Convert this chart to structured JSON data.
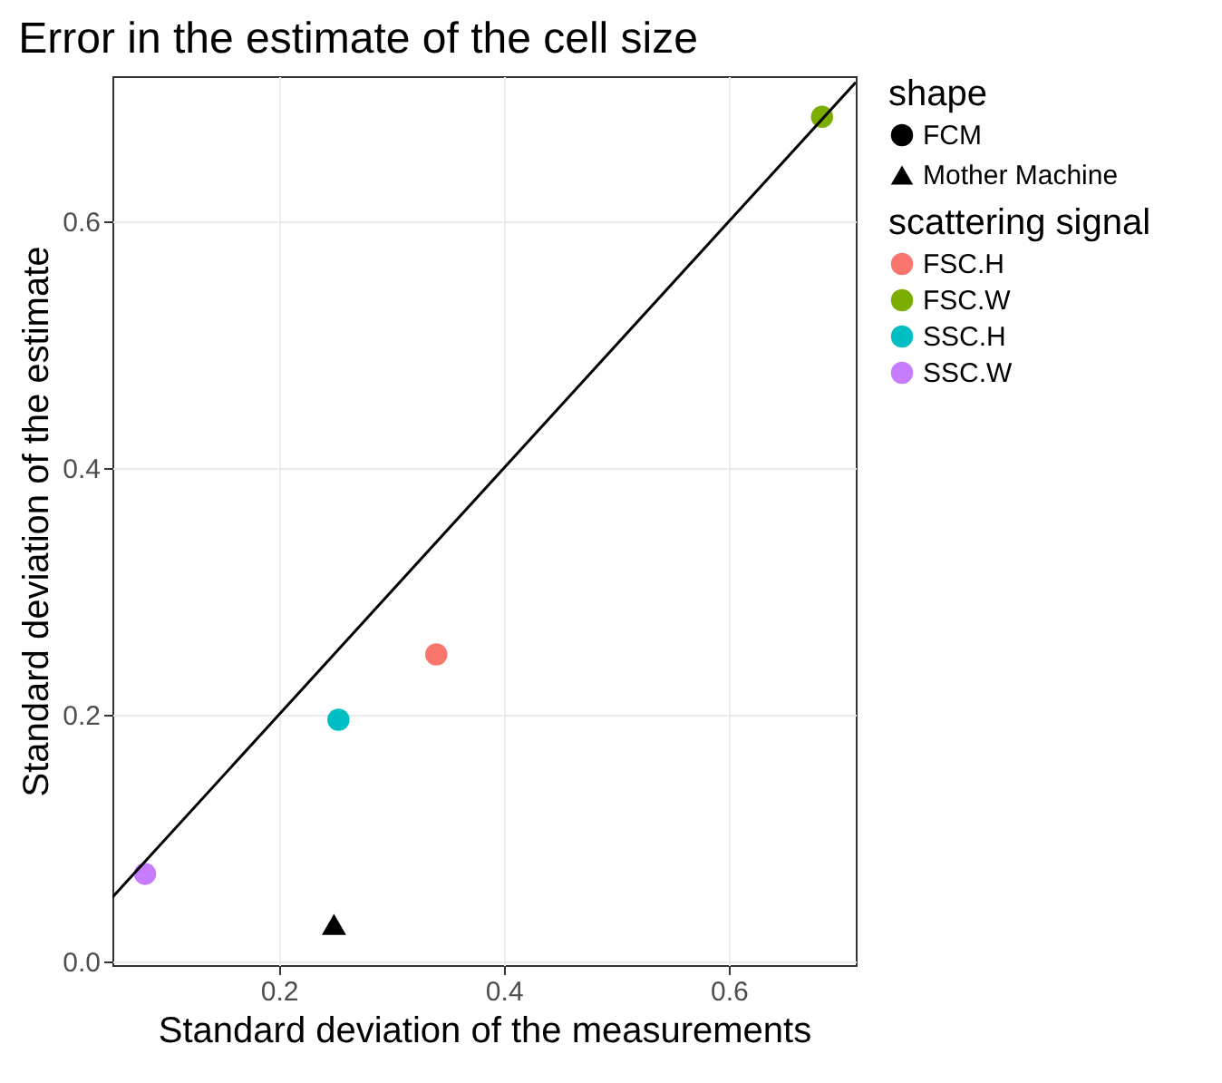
{
  "chart_data": {
    "type": "scatter",
    "title": "Error in the estimate of the cell size",
    "xlabel": "Standard deviation of the measurements",
    "ylabel": "Standard deviation of the estimate",
    "legend_title": [
      "shape",
      "scattering signal"
    ],
    "annotations": [
      "FCM"
    ],
    "xlim": [
      0.052,
      0.713
    ],
    "ylim": [
      -0.003,
      0.718
    ],
    "xticks": [
      0.2,
      0.4,
      0.6
    ],
    "yticks": [
      {
        "value": 0,
        "label": "0.0"
      },
      0.2,
      0.4,
      0.6
    ],
    "grid": true,
    "legend": "right",
    "series": [
      {
        "name": "FSC.H",
        "color": "#f8766d",
        "marker": "circle",
        "x": [
          0.34
        ],
        "values": [
          0.249
        ]
      },
      {
        "name": "FSC.W",
        "color": "#7cae00",
        "marker": "circle",
        "x": [
          0.683
        ],
        "values": [
          0.685
        ]
      },
      {
        "name": "SSC.H",
        "color": "#00bfc4",
        "marker": "circle",
        "x": [
          0.253
        ],
        "values": [
          0.196
        ]
      },
      {
        "name": "SSC.W",
        "color": "#c77cff",
        "marker": "circle",
        "x": [
          0.081
        ],
        "values": [
          0.071
        ]
      },
      {
        "name": "Mother Machine",
        "color": "#000000",
        "marker": "triangle",
        "x": [
          0.249
        ],
        "values": [
          0.03
        ]
      },
      {
        "type": "line",
        "color": "#000000",
        "x": [
          0.052,
          0.713
        ],
        "values": [
          0.052,
          0.713
        ]
      }
    ]
  }
}
